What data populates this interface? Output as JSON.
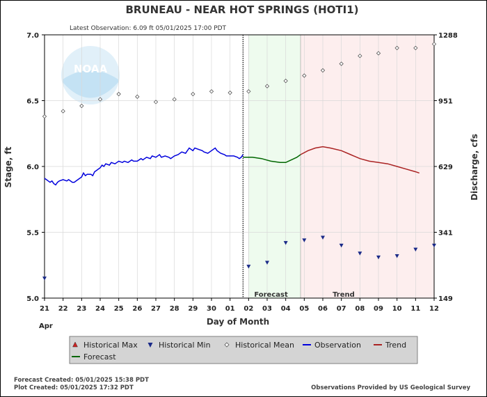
{
  "chart_data": {
    "type": "line",
    "title": "BRUNEAU - NEAR HOT SPRINGS  (HOTI1)",
    "subtitle": "Latest Observation: 6.09 ft 05/01/2025 17:00 PDT",
    "xlabel": "Day of Month",
    "x_month_label": "Apr",
    "ylabel_left": "Stage, ft",
    "ylabel_right": "Discharge, cfs",
    "x_ticks": [
      "21",
      "22",
      "23",
      "24",
      "25",
      "26",
      "27",
      "28",
      "29",
      "30",
      "01",
      "02",
      "03",
      "04",
      "05",
      "06",
      "07",
      "08",
      "09",
      "10",
      "11",
      "12"
    ],
    "y_ticks_left": [
      "5.0",
      "5.5",
      "6.0",
      "6.5",
      "7.0"
    ],
    "y_ticks_right": [
      "149",
      "341",
      "629",
      "951",
      "1288"
    ],
    "ylim": [
      5.0,
      7.0
    ],
    "xlim": [
      0,
      21
    ],
    "grid": true,
    "regions": [
      {
        "label": "Forecast",
        "x_start": 11.0,
        "x_end": 13.8,
        "color": "#eefbee"
      },
      {
        "label": "Trend",
        "x_start": 13.8,
        "x_end": 21.0,
        "color": "#fdeeee"
      }
    ],
    "now_x": 10.7,
    "series": [
      {
        "name": "Observation",
        "color": "#0000dd",
        "x": [
          0,
          0.1,
          0.2,
          0.3,
          0.4,
          0.5,
          0.6,
          0.7,
          0.8,
          1.0,
          1.2,
          1.3,
          1.5,
          1.6,
          1.8,
          2.0,
          2.1,
          2.2,
          2.3,
          2.5,
          2.6,
          2.7,
          2.8,
          3.0,
          3.1,
          3.2,
          3.3,
          3.5,
          3.6,
          3.8,
          4.0,
          4.2,
          4.3,
          4.5,
          4.7,
          4.8,
          5.0,
          5.2,
          5.3,
          5.5,
          5.7,
          5.8,
          6.0,
          6.2,
          6.3,
          6.5,
          6.7,
          6.8,
          7.0,
          7.2,
          7.4,
          7.6,
          7.8,
          8.0,
          8.1,
          8.3,
          8.5,
          8.6,
          8.8,
          9.0,
          9.2,
          9.3,
          9.5,
          9.7,
          9.8,
          10.0,
          10.2,
          10.4,
          10.5,
          10.6,
          10.7
        ],
        "y": [
          5.91,
          5.9,
          5.89,
          5.88,
          5.89,
          5.87,
          5.86,
          5.88,
          5.89,
          5.9,
          5.89,
          5.9,
          5.88,
          5.88,
          5.9,
          5.92,
          5.95,
          5.93,
          5.94,
          5.94,
          5.93,
          5.96,
          5.97,
          5.99,
          6.01,
          6.0,
          6.02,
          6.01,
          6.03,
          6.02,
          6.04,
          6.03,
          6.04,
          6.03,
          6.05,
          6.04,
          6.04,
          6.06,
          6.05,
          6.07,
          6.06,
          6.08,
          6.07,
          6.09,
          6.07,
          6.08,
          6.07,
          6.06,
          6.08,
          6.09,
          6.11,
          6.1,
          6.14,
          6.12,
          6.14,
          6.13,
          6.12,
          6.11,
          6.1,
          6.12,
          6.14,
          6.12,
          6.1,
          6.09,
          6.08,
          6.08,
          6.08,
          6.07,
          6.06,
          6.07,
          6.09
        ]
      },
      {
        "name": "Forecast",
        "color": "#006600",
        "x": [
          10.7,
          11.2,
          11.7,
          12.2,
          12.7,
          13.0,
          13.3,
          13.6,
          13.8
        ],
        "y": [
          6.07,
          6.07,
          6.06,
          6.04,
          6.03,
          6.03,
          6.05,
          6.07,
          6.09
        ]
      },
      {
        "name": "Trend",
        "color": "#aa2222",
        "x": [
          13.8,
          14.2,
          14.6,
          15.0,
          15.4,
          16.0,
          16.5,
          17.0,
          17.5,
          18.0,
          18.5,
          19.0,
          19.5,
          20.0,
          20.2
        ],
        "y": [
          6.09,
          6.12,
          6.14,
          6.15,
          6.14,
          6.12,
          6.09,
          6.06,
          6.04,
          6.03,
          6.02,
          6.0,
          5.98,
          5.96,
          5.95
        ]
      },
      {
        "name": "Historical Mean",
        "marker": "diamond",
        "x": [
          0,
          1,
          2,
          3,
          4,
          5,
          6,
          7,
          8,
          9,
          10,
          11,
          12,
          13,
          14,
          15,
          16,
          17,
          18,
          19,
          20,
          21
        ],
        "y": [
          6.38,
          6.42,
          6.46,
          6.51,
          6.55,
          6.53,
          6.49,
          6.51,
          6.55,
          6.57,
          6.56,
          6.57,
          6.61,
          6.65,
          6.69,
          6.73,
          6.78,
          6.84,
          6.86,
          6.9,
          6.9,
          6.93
        ]
      },
      {
        "name": "Historical Min",
        "marker": "triangle-down",
        "x": [
          0,
          11,
          12,
          13,
          14,
          15,
          16,
          17,
          18,
          19,
          20,
          21
        ],
        "y": [
          5.15,
          5.24,
          5.27,
          5.42,
          5.44,
          5.46,
          5.4,
          5.34,
          5.31,
          5.32,
          5.37,
          5.4
        ]
      },
      {
        "name": "Historical Max",
        "marker": "triangle-up",
        "x": [],
        "y": []
      }
    ],
    "legend": {
      "placement": "bottom",
      "items": [
        {
          "label": "Historical Max",
          "symbol": "triangle-up",
          "color": "#cc2222"
        },
        {
          "label": "Historical Min",
          "symbol": "triangle-down",
          "color": "#1a2a88"
        },
        {
          "label": "Historical Mean",
          "symbol": "diamond",
          "color": "#555555"
        },
        {
          "label": "Observation",
          "symbol": "line",
          "color": "#0000dd"
        },
        {
          "label": "Trend",
          "symbol": "line",
          "color": "#aa2222"
        },
        {
          "label": "Forecast",
          "symbol": "line",
          "color": "#006600"
        }
      ]
    }
  },
  "watermark": "NOAA",
  "footer": {
    "forecast_created": "Forecast Created: 05/01/2025 15:38 PDT",
    "plot_created": "Plot Created: 05/01/2025 17:32 PDT",
    "credit": "Observations Provided by US Geological Survey"
  }
}
